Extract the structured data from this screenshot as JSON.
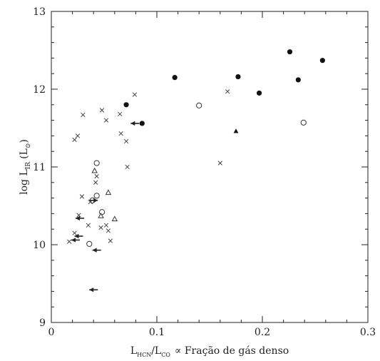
{
  "chart_data": {
    "type": "scatter",
    "title": "",
    "ylabel": {
      "base": "log L",
      "sub": "IR",
      "unit": "(L",
      "unit_sub": "⊙",
      "unit_close": ")"
    },
    "xlabel": {
      "a": "L",
      "a_sub": "HCN",
      "slash": "/L",
      "b_sub": "CO",
      "rest": "∝ Fração de gás denso"
    },
    "xlim": [
      0,
      0.3
    ],
    "ylim": [
      9,
      13
    ],
    "xticks": [
      {
        "v": 0,
        "label": "0"
      },
      {
        "v": 0.1,
        "label": "0.1"
      },
      {
        "v": 0.2,
        "label": "0.2"
      },
      {
        "v": 0.3,
        "label": "0.3"
      }
    ],
    "yticks": [
      {
        "v": 9,
        "label": "9"
      },
      {
        "v": 10,
        "label": "10"
      },
      {
        "v": 11,
        "label": "11"
      },
      {
        "v": 12,
        "label": "12"
      },
      {
        "v": 13,
        "label": "13"
      }
    ],
    "x_minor_step": 0.02,
    "y_minor_step": 0.2,
    "series": [
      {
        "marker": "filled-circle",
        "points": [
          [
            0.071,
            11.8
          ],
          [
            0.117,
            12.15
          ],
          [
            0.177,
            12.16
          ],
          [
            0.197,
            11.95
          ],
          [
            0.226,
            12.48
          ],
          [
            0.234,
            12.12
          ],
          [
            0.257,
            12.37
          ]
        ]
      },
      {
        "marker": "filled-circle-arrow-left",
        "points": [
          [
            0.086,
            11.56
          ]
        ]
      },
      {
        "marker": "open-circle",
        "points": [
          [
            0.14,
            11.79
          ],
          [
            0.239,
            11.57
          ],
          [
            0.043,
            11.05
          ],
          [
            0.043,
            10.63
          ],
          [
            0.039,
            10.57
          ],
          [
            0.036,
            10.01
          ],
          [
            0.048,
            10.42
          ]
        ]
      },
      {
        "marker": "cross",
        "points": [
          [
            0.03,
            11.67
          ],
          [
            0.025,
            11.4
          ],
          [
            0.022,
            11.35
          ],
          [
            0.048,
            11.73
          ],
          [
            0.052,
            11.6
          ],
          [
            0.065,
            11.68
          ],
          [
            0.066,
            11.43
          ],
          [
            0.071,
            11.33
          ],
          [
            0.079,
            11.93
          ],
          [
            0.072,
            11.0
          ],
          [
            0.167,
            11.97
          ],
          [
            0.16,
            11.05
          ],
          [
            0.043,
            10.88
          ],
          [
            0.042,
            10.8
          ],
          [
            0.037,
            10.55
          ],
          [
            0.029,
            10.62
          ],
          [
            0.026,
            10.38
          ],
          [
            0.022,
            10.15
          ],
          [
            0.035,
            10.25
          ],
          [
            0.047,
            10.22
          ],
          [
            0.054,
            10.18
          ],
          [
            0.056,
            10.05
          ],
          [
            0.052,
            10.25
          ],
          [
            0.017,
            10.04
          ]
        ]
      },
      {
        "marker": "open-triangle",
        "points": [
          [
            0.041,
            10.95
          ],
          [
            0.054,
            10.67
          ],
          [
            0.06,
            10.33
          ],
          [
            0.047,
            10.37
          ]
        ]
      },
      {
        "marker": "filled-triangle",
        "points": [
          [
            0.175,
            11.46
          ]
        ]
      },
      {
        "marker": "arrow-left",
        "points": [
          [
            0.027,
            10.34
          ],
          [
            0.026,
            10.11
          ],
          [
            0.023,
            10.06
          ],
          [
            0.043,
            9.93
          ],
          [
            0.04,
            9.42
          ]
        ]
      },
      {
        "marker": "arrow-right",
        "points": [
          [
            0.04,
            10.57
          ]
        ]
      }
    ]
  }
}
